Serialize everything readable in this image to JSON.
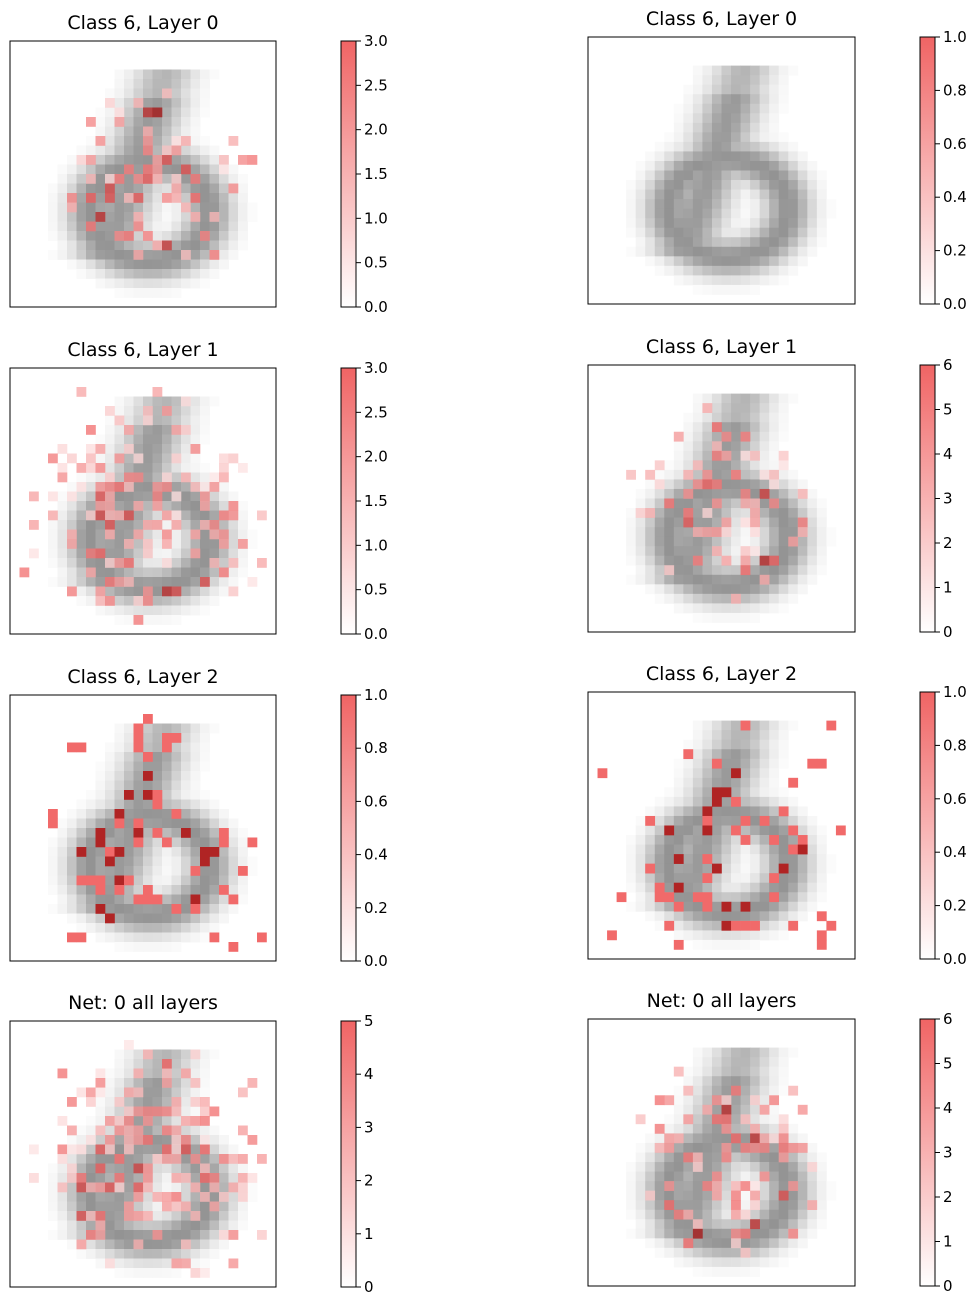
{
  "chart_data": [
    {
      "type": "heatmap",
      "title": "Class 6, Layer 0",
      "colorbar_ticks": [
        "0.0",
        "0.5",
        "1.0",
        "1.5",
        "2.0",
        "2.5",
        "3.0"
      ],
      "vmax": 3.0,
      "overlay": "medium"
    },
    {
      "type": "heatmap",
      "title": "Class 6, Layer 0",
      "colorbar_ticks": [
        "0.0",
        "0.2",
        "0.4",
        "0.6",
        "0.8",
        "1.0"
      ],
      "vmax": 1.0,
      "overlay": "none"
    },
    {
      "type": "heatmap",
      "title": "Class 6, Layer 1",
      "colorbar_ticks": [
        "0.0",
        "0.5",
        "1.0",
        "1.5",
        "2.0",
        "2.5",
        "3.0"
      ],
      "vmax": 3.0,
      "overlay": "wide"
    },
    {
      "type": "heatmap",
      "title": "Class 6, Layer 1",
      "colorbar_ticks": [
        "0",
        "1",
        "2",
        "3",
        "4",
        "5",
        "6"
      ],
      "vmax": 6,
      "overlay": "medium"
    },
    {
      "type": "heatmap",
      "title": "Class 6, Layer 2",
      "colorbar_ticks": [
        "0.0",
        "0.2",
        "0.4",
        "0.6",
        "0.8",
        "1.0"
      ],
      "vmax": 1.0,
      "overlay": "sparse"
    },
    {
      "type": "heatmap",
      "title": "Class 6, Layer 2",
      "colorbar_ticks": [
        "0.0",
        "0.2",
        "0.4",
        "0.6",
        "0.8",
        "1.0"
      ],
      "vmax": 1.0,
      "overlay": "sparse"
    },
    {
      "type": "heatmap",
      "title": "Net: 0 all layers",
      "colorbar_ticks": [
        "0",
        "1",
        "2",
        "3",
        "4",
        "5"
      ],
      "vmax": 5,
      "overlay": "wide"
    },
    {
      "type": "heatmap",
      "title": "Net: 0 all layers",
      "colorbar_ticks": [
        "0",
        "1",
        "2",
        "3",
        "4",
        "5",
        "6"
      ],
      "vmax": 6,
      "overlay": "medium"
    }
  ],
  "colors": {
    "overlay_high": "#f06464",
    "overlay_peak": "#a01414",
    "background_digit": "#8a8a8a",
    "colorbar_top": "#f06464",
    "colorbar_bottom": "#ffffff"
  }
}
